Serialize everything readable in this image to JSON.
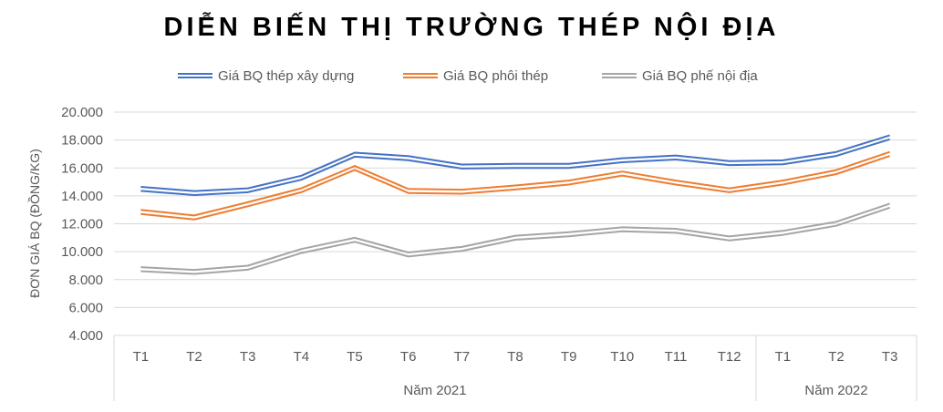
{
  "chart_data": {
    "type": "line",
    "title": "DIỄN BIẾN THỊ TRƯỜNG THÉP NỘI ĐỊA",
    "ylabel": "ĐƠN GIÁ BQ (ĐỒNG/KG)",
    "ylim": [
      4000,
      20000
    ],
    "yticks": [
      "4.000",
      "6.000",
      "8.000",
      "10.000",
      "12.000",
      "14.000",
      "16.000",
      "18.000",
      "20.000"
    ],
    "ytick_values": [
      4000,
      6000,
      8000,
      10000,
      12000,
      14000,
      16000,
      18000,
      20000
    ],
    "categories": [
      "T1",
      "T2",
      "T3",
      "T4",
      "T5",
      "T6",
      "T7",
      "T8",
      "T9",
      "T10",
      "T11",
      "T12",
      "T1",
      "T2",
      "T3"
    ],
    "groups": [
      {
        "label": "Năm 2021",
        "count": 12
      },
      {
        "label": "Năm 2022",
        "count": 3
      }
    ],
    "grid": true,
    "legend_position": "top",
    "series": [
      {
        "name": "Giá BQ thép xây dựng",
        "color": "#4472C4",
        "values": [
          14500,
          14200,
          14400,
          15300,
          16950,
          16700,
          16100,
          16150,
          16150,
          16550,
          16750,
          16350,
          16400,
          17000,
          18200
        ]
      },
      {
        "name": "Giá BQ phôi thép",
        "color": "#ED7D31",
        "values": [
          12850,
          12450,
          13400,
          14400,
          16000,
          14350,
          14300,
          14600,
          14950,
          15600,
          14950,
          14400,
          14950,
          15700,
          17000
        ]
      },
      {
        "name": "Giá BQ phế nội địa",
        "color": "#A5A5A5",
        "values": [
          8750,
          8550,
          8850,
          10050,
          10850,
          9800,
          10200,
          11000,
          11250,
          11600,
          11500,
          10950,
          11350,
          12000,
          13300
        ]
      }
    ]
  }
}
